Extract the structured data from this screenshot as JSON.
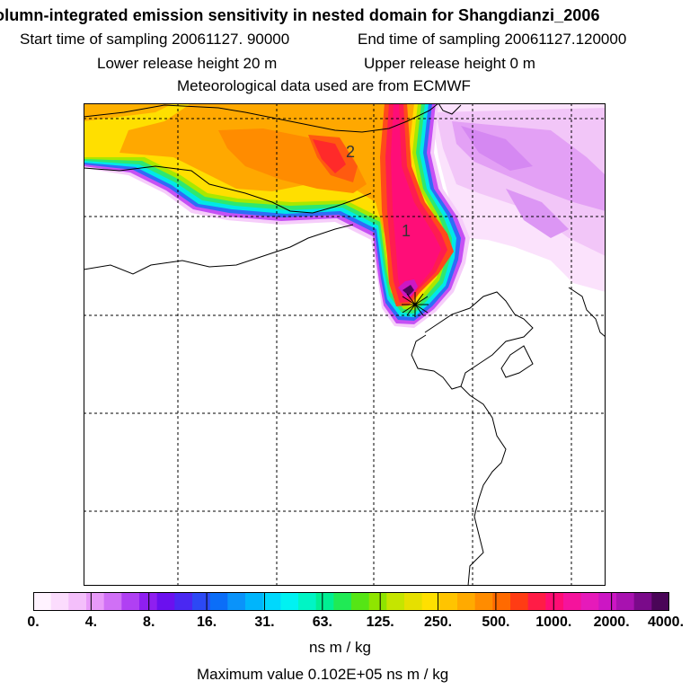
{
  "header": {
    "title": "olumn-integrated emission sensitivity in nested domain for Shangdianzi_2006",
    "start_time": "Start time of sampling 20061127. 90000",
    "end_time": "End time of sampling 20061127.120000",
    "lower_release": "Lower release height   20 m",
    "upper_release": "Upper release height    0 m",
    "met_data": "Meteorological data used are from ECMWF"
  },
  "map": {
    "labels": [
      "1",
      "2"
    ],
    "grid": "dashed"
  },
  "colorbar": {
    "tick_labels": [
      "0.",
      "4.",
      "8.",
      "16.",
      "31.",
      "63.",
      "125.",
      "250.",
      "500.",
      "1000.",
      "2000.",
      "4000."
    ],
    "colors": [
      "#fff3ff",
      "#fbdcfd",
      "#f4bffb",
      "#e89af9",
      "#d070f6",
      "#b040f3",
      "#8f1ff0",
      "#6b10ef",
      "#4a28f2",
      "#2c49f5",
      "#0b6ef8",
      "#0a93fa",
      "#00b5fc",
      "#00d8fd",
      "#00f2f2",
      "#00f5c5",
      "#00ef93",
      "#20ea55",
      "#55e515",
      "#8fe500",
      "#c5e500",
      "#e6e000",
      "#ffe000",
      "#ffc400",
      "#ffaa00",
      "#ff8c00",
      "#ff6a00",
      "#ff3c14",
      "#ff1c46",
      "#ff0d74",
      "#f5139c",
      "#e61aba",
      "#cc16c4",
      "#a812b0",
      "#7a0a8a",
      "#4a0558"
    ],
    "units": "ns m / kg"
  },
  "footer": {
    "max_value": "Maximum value  0.102E+05 ns m / kg"
  }
}
